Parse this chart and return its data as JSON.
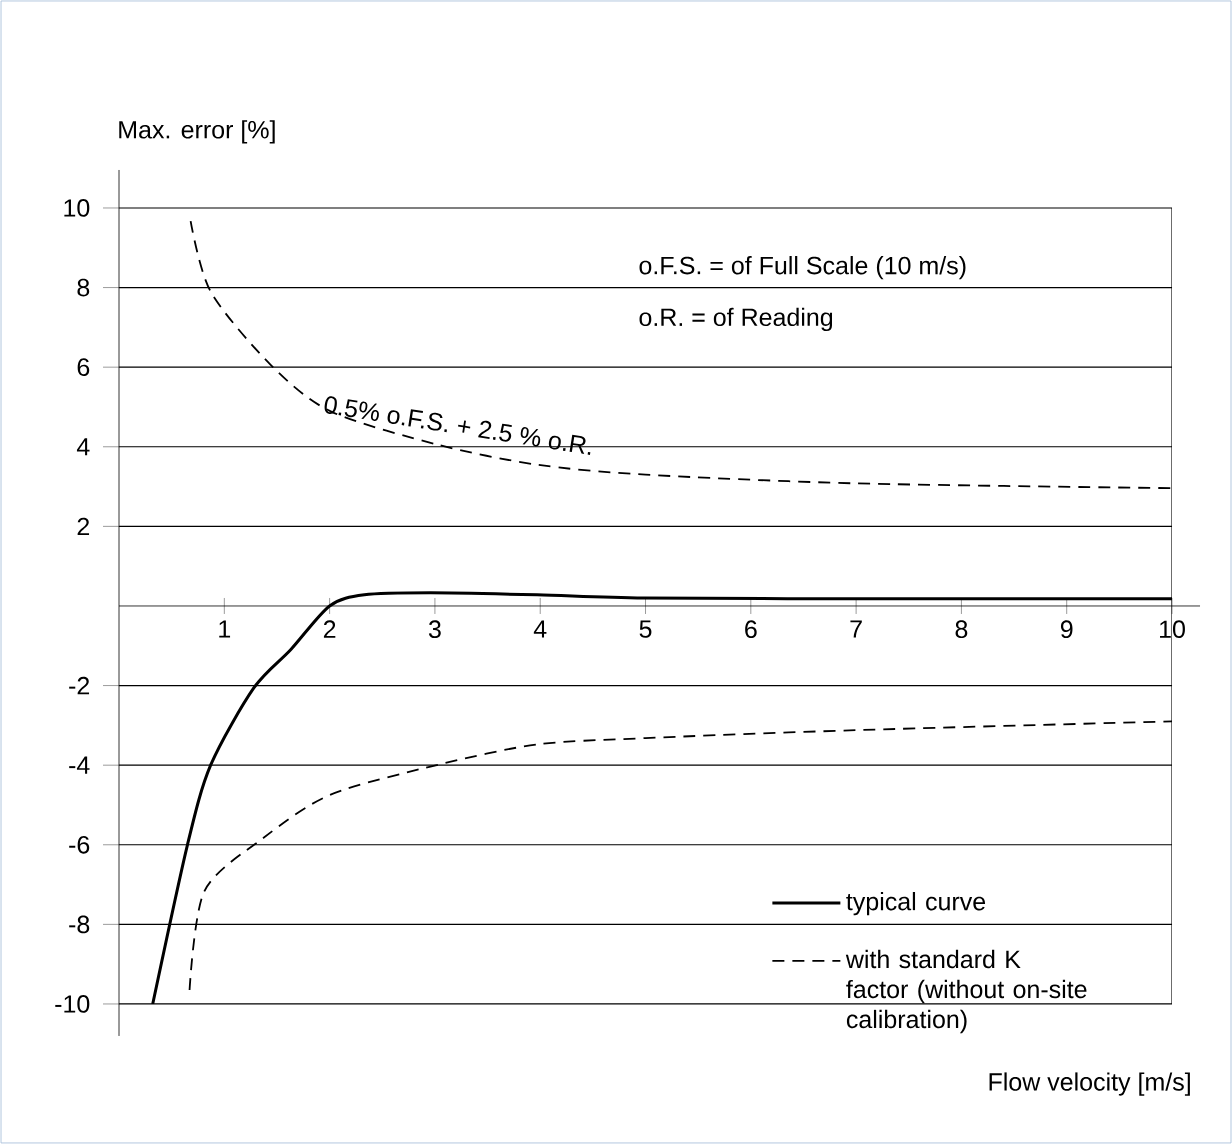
{
  "chart_data": {
    "type": "line",
    "xlabel": "Flow velocity [m/s]",
    "ylabel": "Max. error [%]",
    "xlim": [
      0,
      10
    ],
    "ylim": [
      -10,
      10
    ],
    "xticks": [
      1,
      2,
      3,
      4,
      5,
      6,
      7,
      8,
      9,
      10
    ],
    "yticks": [
      -10,
      -8,
      -6,
      -4,
      -2,
      2,
      4,
      6,
      8,
      10
    ],
    "grid": "y",
    "legend": "bottom right",
    "annotations": [
      "o.F.S. = of Full Scale (10 m/s)",
      "o.R. = of Reading",
      "0.5% o.F.S. + 2.5 % o.R."
    ],
    "series": [
      {
        "name": "typical curve",
        "color": "#000000",
        "line_style": "solid",
        "x": [
          0.32,
          0.65,
          0.87,
          1.28,
          1.63,
          2.0,
          2.33,
          2.96,
          3.97,
          4.99,
          7,
          10
        ],
        "values": [
          -10,
          -6,
          -4,
          -2.06,
          -1.1,
          0,
          0.28,
          0.33,
          0.28,
          0.2,
          0.18,
          0.18
        ]
      },
      {
        "color": "#000000",
        "line_style": "dashed",
        "x": [
          0.68,
          0.87,
          1.44,
          2.01,
          3.03,
          3.97,
          5,
          7,
          10
        ],
        "values": [
          9.67,
          7.9,
          6.06,
          4.89,
          4.05,
          3.55,
          3.3,
          3.08,
          2.96
        ]
      },
      {
        "name": "with standard K factor (without on-site calibration)",
        "color": "#000000",
        "line_style": "dashed",
        "x": [
          0.67,
          0.81,
          1.37,
          2.01,
          3.03,
          3.97,
          5,
          7,
          10
        ],
        "values": [
          -9.65,
          -7.17,
          -5.83,
          -4.74,
          -3.99,
          -3.48,
          -3.32,
          -3.12,
          -2.9
        ]
      }
    ]
  }
}
